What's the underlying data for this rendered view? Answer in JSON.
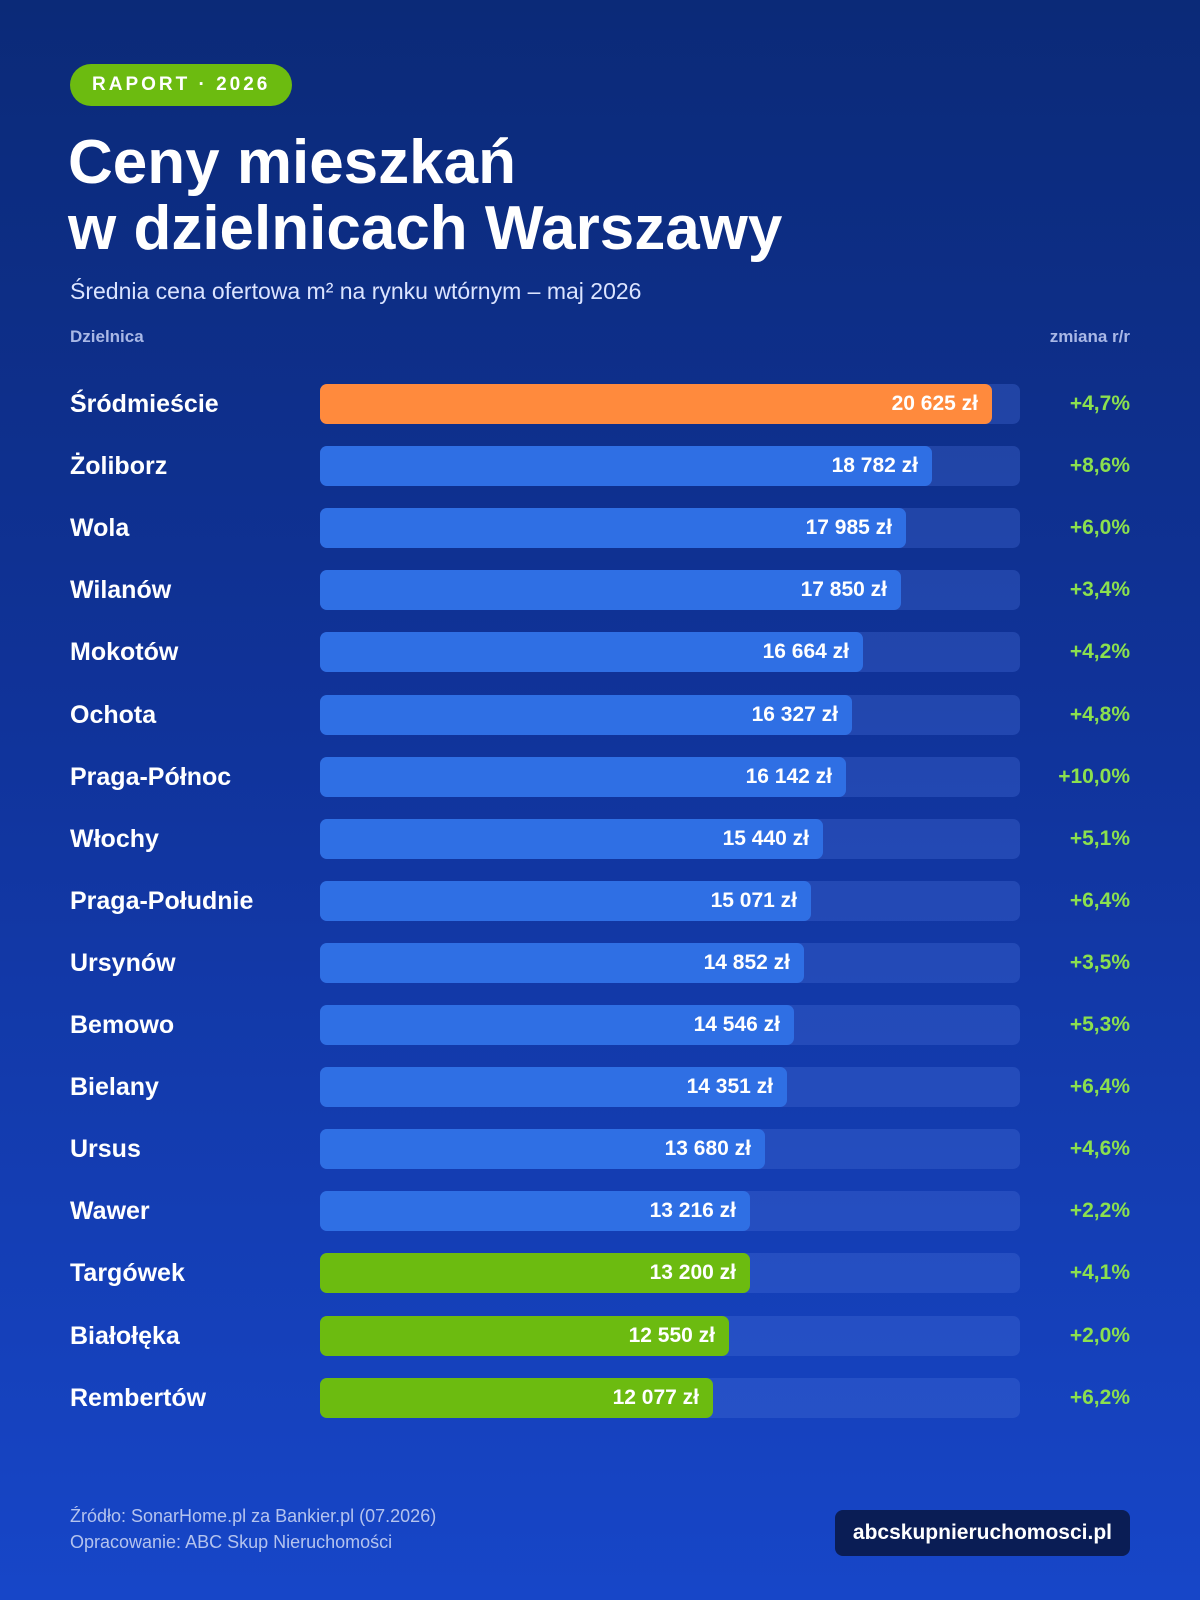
{
  "badge": "RAPORT · 2026",
  "header": {
    "title_line1": "Ceny mieszkań",
    "title_line2": "w dzielnicach Warszawy",
    "subtitle": "Średnia cena ofertowa m² na rynku wtórnym – maj 2026"
  },
  "columns": {
    "left": "Dzielnica",
    "right": "zmiana r/r"
  },
  "colors": {
    "highest": "#ff8a3d",
    "default": "#2f6fe4",
    "lowest": "#6cbb10",
    "change": "#8be04e"
  },
  "chart_data": {
    "type": "bar",
    "orientation": "horizontal",
    "title": "Ceny mieszkań w dzielnicach Warszawy",
    "subtitle": "Średnia cena ofertowa m² na rynku wtórnym – maj 2026",
    "xlim": [
      0,
      21500
    ],
    "grid": false,
    "categories": [
      "Śródmieście",
      "Żoliborz",
      "Wola",
      "Wilanów",
      "Mokotów",
      "Ochota",
      "Praga-Północ",
      "Włochy",
      "Praga-Południe",
      "Ursynów",
      "Bemowo",
      "Bielany",
      "Ursus",
      "Wawer",
      "Targówek",
      "Białołęka",
      "Rembertów"
    ],
    "values": [
      20625,
      18782,
      17985,
      17850,
      16664,
      16327,
      16142,
      15440,
      15071,
      14852,
      14546,
      14351,
      13680,
      13216,
      13200,
      12550,
      12077
    ],
    "value_labels": [
      "20 625 zł",
      "18 782 zł",
      "17 985 zł",
      "17 850 zł",
      "16 664 zł",
      "16 327 zł",
      "16 142 zł",
      "15 440 zł",
      "15 071 zł",
      "14 852 zł",
      "14 546 zł",
      "14 351 zł",
      "13 680 zł",
      "13 216 zł",
      "13 200 zł",
      "12 550 zł",
      "12 077 zł"
    ],
    "change_labels": [
      "+4,7%",
      "+8,6%",
      "+6,0%",
      "+3,4%",
      "+4,2%",
      "+4,8%",
      "+10,0%",
      "+5,1%",
      "+6,4%",
      "+3,5%",
      "+5,3%",
      "+6,4%",
      "+4,6%",
      "+2,2%",
      "+4,1%",
      "+2,0%",
      "+6,2%"
    ],
    "highlight": [
      "top",
      "default",
      "default",
      "default",
      "default",
      "default",
      "default",
      "default",
      "default",
      "default",
      "default",
      "default",
      "default",
      "default",
      "low",
      "low",
      "low"
    ]
  },
  "footer": {
    "source": "Źródło: SonarHome.pl za Bankier.pl (07.2026)",
    "author": "Opracowanie: ABC Skup Nieruchomości",
    "site": "abcskupnieruchomosci.pl"
  }
}
